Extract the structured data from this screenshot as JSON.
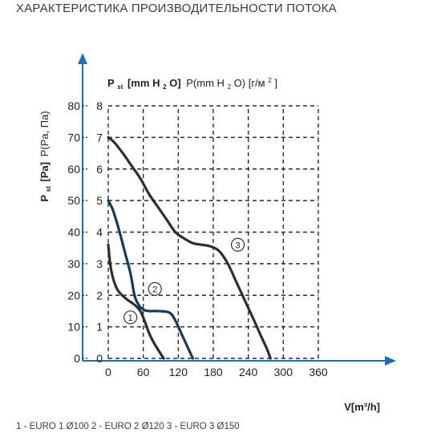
{
  "header": {
    "title": "ХАРАКТЕРИСТИКА ПРОИЗВОДИТЕЛЬНОСТИ ПОТОКА"
  },
  "legend_text": "1 - EURO 1 Ø100   2 - EURO 2 Ø120   3 - EURO 3 Ø150",
  "chart_data": {
    "type": "line",
    "title": "",
    "xlabel": "V[m³/h]",
    "ylabel_pa": "P st [Pa] P(Pa, Па)",
    "ylabel_pa_parts": {
      "main": "P",
      "sub": "st",
      "unit": "[Pa]",
      "extra": "P(Pa, Па)"
    },
    "ylabel_mm": "P st [mm H2O] P(mm H2O) [г/м²]",
    "ylabel_mm_parts": {
      "main": "P",
      "sub": "st",
      "unit": "[mm H",
      "unit_sub": "2",
      "unit_end": "O]",
      "extra1": "P(mm H",
      "extra_sub": "2",
      "extra2": "O) [г/м",
      "extra_sup": "2",
      "extra3": "]"
    },
    "xlim": [
      0,
      360
    ],
    "ylim_pa": [
      0,
      80
    ],
    "ylim_mm": [
      0,
      8
    ],
    "x_ticks": [
      "0",
      "60",
      "120",
      "180",
      "240",
      "300",
      "360"
    ],
    "y_ticks_pa": [
      "0",
      "10",
      "20",
      "30",
      "40",
      "50",
      "60",
      "70",
      "80"
    ],
    "y_ticks_mm": [
      "0",
      "1",
      "2",
      "3",
      "4",
      "5",
      "6",
      "7",
      "8"
    ],
    "grid": true,
    "series": [
      {
        "name": "1",
        "color": "#2b2e33",
        "points": [
          [
            0,
            36
          ],
          [
            5,
            28
          ],
          [
            15,
            22
          ],
          [
            30,
            19
          ],
          [
            45,
            17
          ],
          [
            55,
            15
          ],
          [
            62,
            12
          ],
          [
            70,
            8
          ],
          [
            78,
            5
          ],
          [
            88,
            2
          ],
          [
            95,
            0
          ]
        ]
      },
      {
        "name": "2",
        "color": "#163b5a",
        "points": [
          [
            0,
            50
          ],
          [
            8,
            47
          ],
          [
            18,
            41
          ],
          [
            28,
            34
          ],
          [
            38,
            27
          ],
          [
            45,
            20
          ],
          [
            52,
            17
          ],
          [
            60,
            15.5
          ],
          [
            70,
            15
          ],
          [
            85,
            15
          ],
          [
            105,
            14.5
          ],
          [
            115,
            12
          ],
          [
            125,
            8
          ],
          [
            135,
            4
          ],
          [
            145,
            0
          ]
        ]
      },
      {
        "name": "3",
        "color": "#2b2e33",
        "points": [
          [
            0,
            70
          ],
          [
            10,
            68.5
          ],
          [
            25,
            65
          ],
          [
            40,
            61
          ],
          [
            55,
            57
          ],
          [
            70,
            52
          ],
          [
            85,
            48
          ],
          [
            100,
            44
          ],
          [
            115,
            40
          ],
          [
            130,
            38
          ],
          [
            145,
            36.5
          ],
          [
            160,
            36
          ],
          [
            175,
            35.5
          ],
          [
            190,
            34
          ],
          [
            205,
            30
          ],
          [
            220,
            24
          ],
          [
            235,
            18
          ],
          [
            250,
            12
          ],
          [
            262,
            7
          ],
          [
            272,
            3
          ],
          [
            278,
            0
          ]
        ]
      }
    ],
    "curve_labels": [
      {
        "text": "1",
        "x": 38,
        "y": 13
      },
      {
        "text": "2",
        "x": 80,
        "y": 22
      },
      {
        "text": "3",
        "x": 222,
        "y": 36
      }
    ]
  }
}
